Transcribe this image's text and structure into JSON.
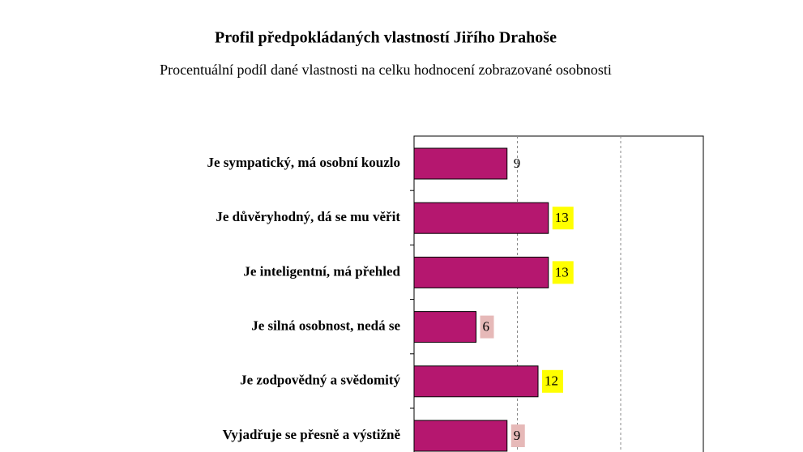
{
  "chart_data": {
    "type": "barh",
    "title": "Profil předpokládaných  vlastností Jiřího  Drahoše",
    "subtitle": "Procentuální podíl dané vlastnosti na celku hodnocení zobrazované osobnosti",
    "categories": [
      "Je sympatický, má osobní kouzlo",
      "Je důvěryhodný, dá se mu věřit",
      "Je inteligentní, má přehled",
      "Je silná osobnost, nedá se",
      "Je zodpovědný a svědomitý",
      "Vyjadřuje se přesně a výstižně"
    ],
    "values": [
      9,
      13,
      13,
      6,
      12,
      9
    ],
    "value_label_backgrounds": [
      null,
      "#ffff00",
      "#ffff00",
      "#e6b9b8",
      "#ffff00",
      "#e6b9b8"
    ],
    "color": "#b5176f",
    "xlim": [
      0,
      28
    ],
    "xticks": [
      10,
      20
    ],
    "grid": true
  }
}
